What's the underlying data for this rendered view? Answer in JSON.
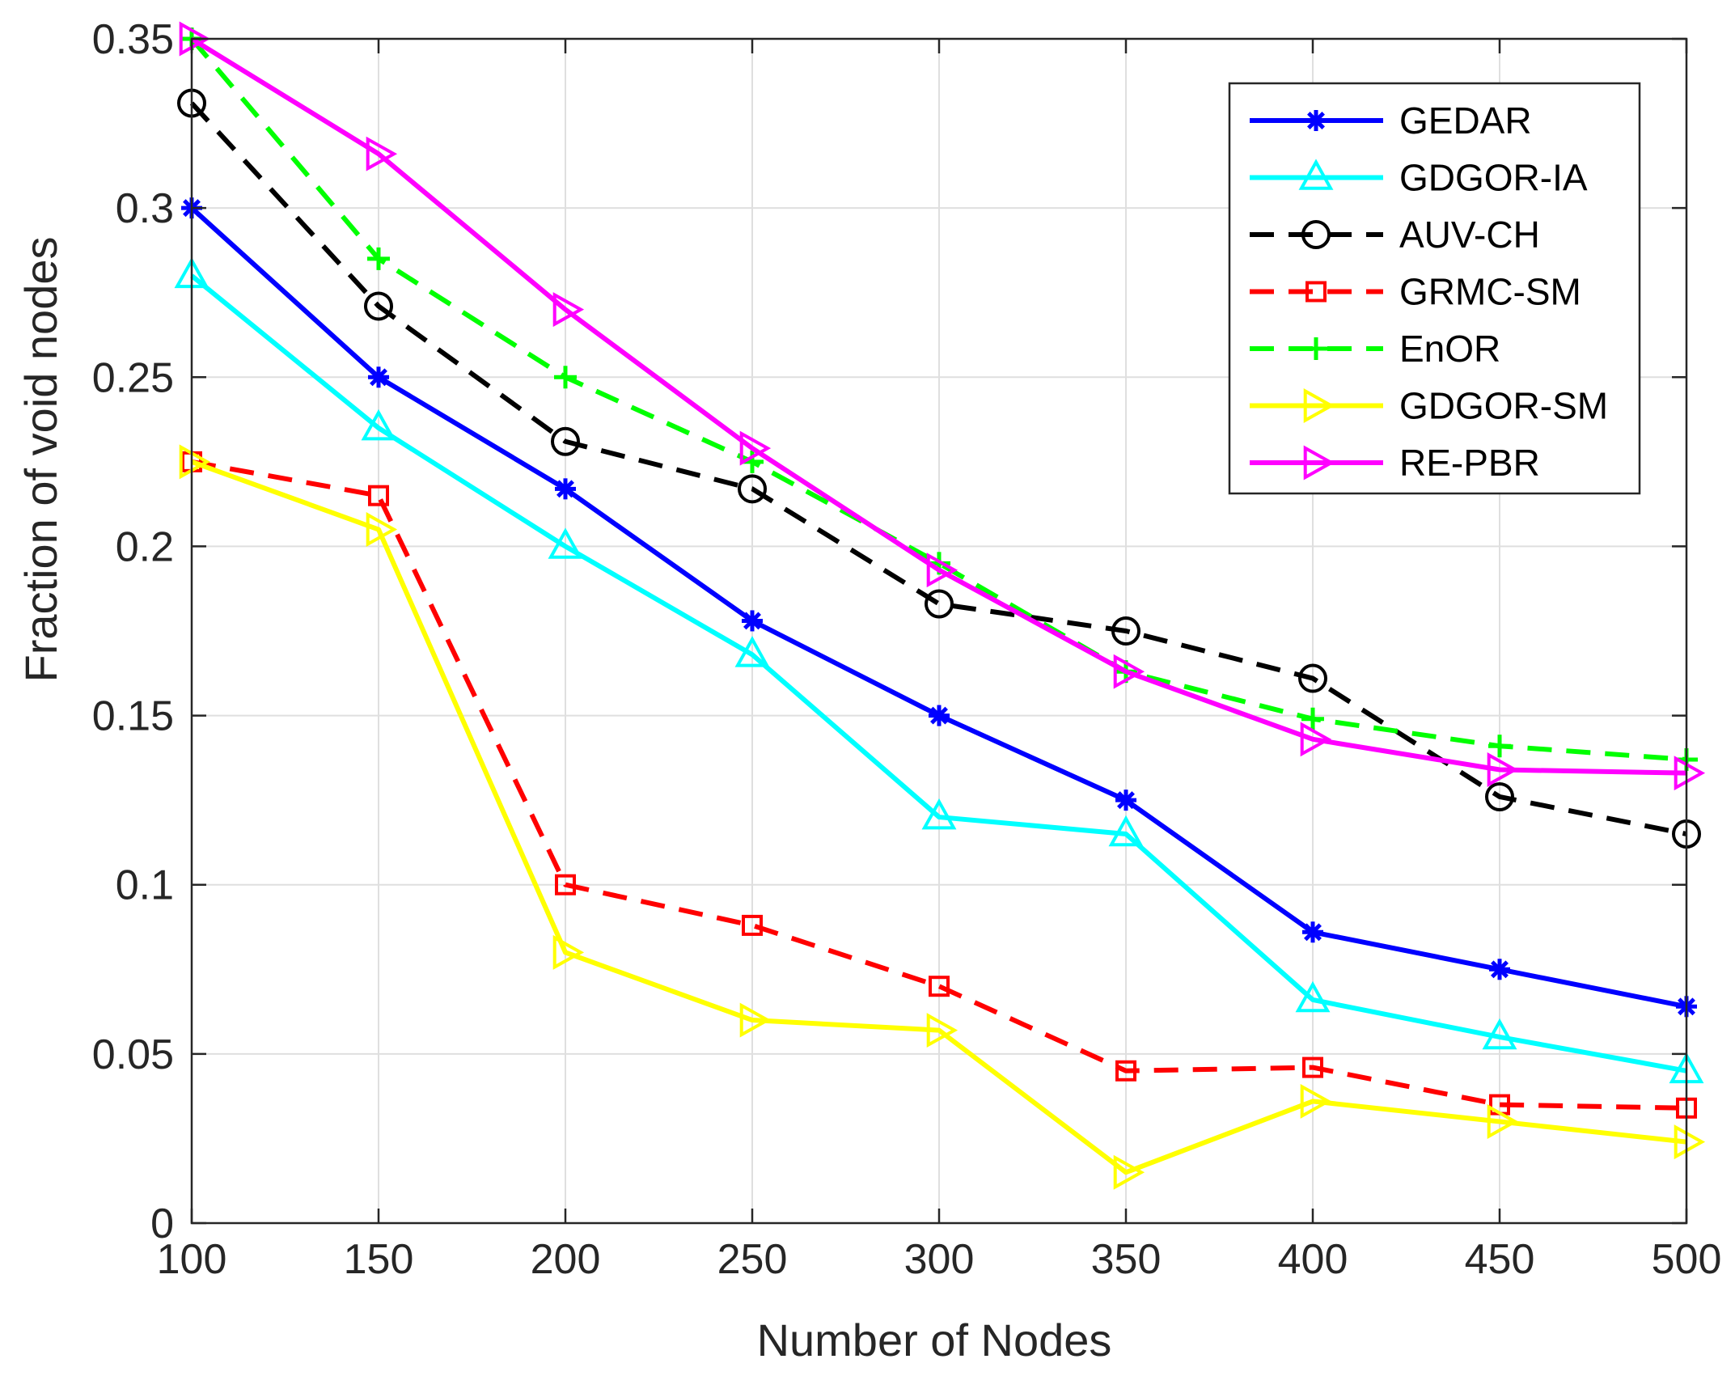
{
  "chart_data": {
    "type": "line",
    "xlabel": "Number of Nodes",
    "ylabel": "Fraction of void nodes",
    "xlim": [
      100,
      500
    ],
    "ylim": [
      0,
      0.35
    ],
    "xticks": [
      100,
      150,
      200,
      250,
      300,
      350,
      400,
      450,
      500
    ],
    "yticks": [
      0,
      0.05,
      0.1,
      0.15,
      0.2,
      0.25,
      0.3,
      0.35
    ],
    "xtick_labels": [
      "100",
      "150",
      "200",
      "250",
      "300",
      "350",
      "400",
      "450",
      "500"
    ],
    "ytick_labels": [
      "0",
      "0.05",
      "0.1",
      "0.15",
      "0.2",
      "0.25",
      "0.3",
      "0.35"
    ],
    "grid": true,
    "legend_position": "top-right",
    "x": [
      100,
      150,
      200,
      250,
      300,
      350,
      400,
      450,
      500
    ],
    "series": [
      {
        "name": "GEDAR",
        "color": "#0000ff",
        "dash": "solid",
        "marker": "asterisk",
        "values": [
          0.3,
          0.25,
          0.217,
          0.178,
          0.15,
          0.125,
          0.086,
          0.075,
          0.064
        ]
      },
      {
        "name": "GDGOR-IA",
        "color": "#00ffff",
        "dash": "solid",
        "marker": "triangle-up",
        "values": [
          0.28,
          0.235,
          0.2,
          0.168,
          0.12,
          0.115,
          0.066,
          0.055,
          0.045
        ]
      },
      {
        "name": "AUV-CH",
        "color": "#000000",
        "dash": "dashed",
        "marker": "circle",
        "values": [
          0.331,
          0.271,
          0.231,
          0.217,
          0.183,
          0.175,
          0.161,
          0.126,
          0.115
        ]
      },
      {
        "name": "GRMC-SM",
        "color": "#ff0000",
        "dash": "dashed",
        "marker": "square",
        "values": [
          0.225,
          0.215,
          0.1,
          0.088,
          0.07,
          0.045,
          0.046,
          0.035,
          0.034
        ]
      },
      {
        "name": "EnOR",
        "color": "#00ff00",
        "dash": "dashed",
        "marker": "plus",
        "values": [
          0.35,
          0.285,
          0.25,
          0.225,
          0.195,
          0.163,
          0.149,
          0.141,
          0.137
        ]
      },
      {
        "name": "GDGOR-SM",
        "color": "#ffff00",
        "dash": "solid",
        "marker": "triangle-right",
        "values": [
          0.225,
          0.205,
          0.08,
          0.06,
          0.057,
          0.015,
          0.036,
          0.03,
          0.024
        ]
      },
      {
        "name": "RE-PBR",
        "color": "#ff00ff",
        "dash": "solid",
        "marker": "triangle-right",
        "values": [
          0.35,
          0.316,
          0.27,
          0.229,
          0.193,
          0.163,
          0.143,
          0.134,
          0.133
        ]
      }
    ]
  }
}
